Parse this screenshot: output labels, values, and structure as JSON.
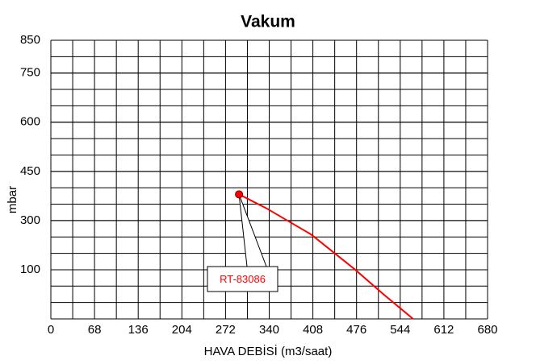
{
  "chart_data": {
    "type": "line",
    "title": "Vakum",
    "x_label": "HAVA DEBİSİ (m3/saat)",
    "y_label": "mbar",
    "xlim": [
      0,
      680
    ],
    "xticks": [
      0,
      68,
      136,
      204,
      272,
      340,
      408,
      476,
      544,
      612,
      680
    ],
    "ylim": [
      0,
      850
    ],
    "yticks": [
      850,
      750,
      600,
      450,
      300,
      100
    ],
    "grid": true,
    "series": [
      {
        "name": "RT-83086",
        "color": "#ff0000",
        "x": [
          293,
          336,
          405,
          474,
          518,
          564
        ],
        "values": [
          380,
          337,
          244,
          100,
          50,
          0
        ]
      }
    ]
  }
}
